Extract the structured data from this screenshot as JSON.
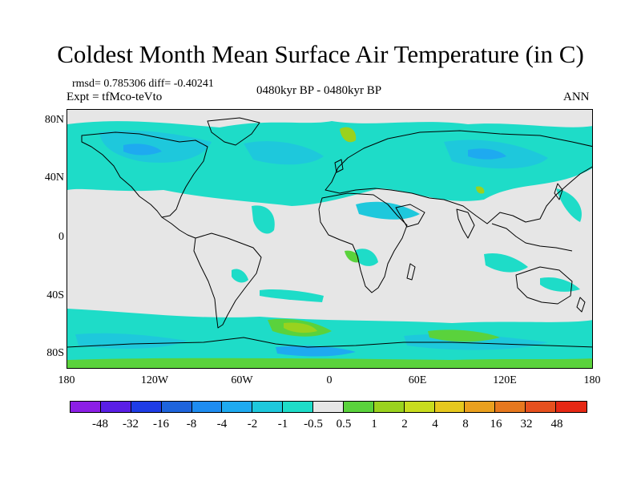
{
  "title": "Coldest Month Mean Surface Air Temperature (in C)",
  "stats": "rmsd= 0.785306 diff= -0.40241",
  "experiment": "Expt = tfMco-teVto",
  "period": "0480kyr BP - 0480kyr BP",
  "season": "ANN",
  "map": {
    "projection": "cylindrical equidistant",
    "lat_labels": [
      "80N",
      "40N",
      "0",
      "40S",
      "80S"
    ],
    "lon_labels": [
      "180",
      "120W",
      "60W",
      "0",
      "60E",
      "120E",
      "180"
    ]
  },
  "colorbar": {
    "colors": [
      "#8c1ee6",
      "#5a1ee6",
      "#1e3ce6",
      "#1e64dc",
      "#1e8cf0",
      "#1eaaf0",
      "#1ec8dc",
      "#1edcc8",
      "#e6e6e6",
      "#5ad23c",
      "#9ad21e",
      "#c8dc1e",
      "#e6c81e",
      "#eaa01e",
      "#e6781e",
      "#e6501e",
      "#e62814"
    ],
    "labels": [
      "-48",
      "-32",
      "-16",
      "-8",
      "-4",
      "-2",
      "-1",
      "-0.5",
      "0.5",
      "1",
      "2",
      "4",
      "8",
      "16",
      "32",
      "48"
    ]
  }
}
